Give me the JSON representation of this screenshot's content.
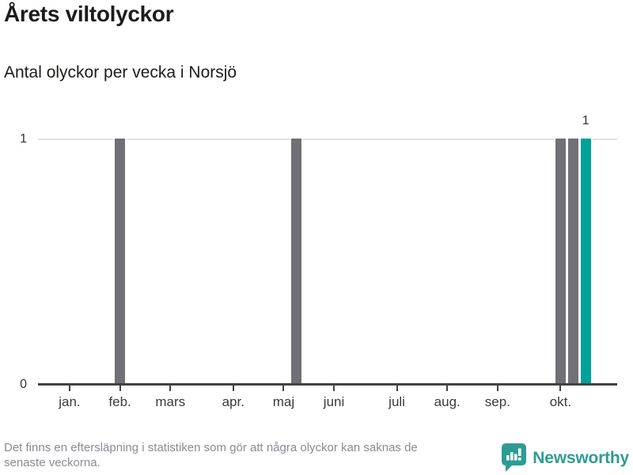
{
  "header": {
    "title": "Årets viltolyckor",
    "subtitle": "Antal olyckor per vecka i Norsjö"
  },
  "footer": {
    "note_line1": "Det finns en eftersläpning i statistiken som gör att några olyckor kan saknas de",
    "note_line2": "senaste veckorna.",
    "note_color": "#8b8b94",
    "brand": "Newsworthy",
    "brand_color": "#2E9C93"
  },
  "chart_data": {
    "type": "bar",
    "title": "Årets viltolyckor",
    "subtitle": "Antal olyckor per vecka i Norsjö",
    "x_unit": "week of year",
    "weeks_total": 44,
    "default_value": 0,
    "ylim": [
      0,
      1
    ],
    "yticks": [
      0,
      1
    ],
    "grid": "horizontal line at y=1 only",
    "legend": "none",
    "month_ticks": [
      {
        "label": "jan.",
        "week": 1
      },
      {
        "label": "feb.",
        "week": 5
      },
      {
        "label": "mars",
        "week": 9
      },
      {
        "label": "apr.",
        "week": 14
      },
      {
        "label": "maj",
        "week": 18
      },
      {
        "label": "juni",
        "week": 22
      },
      {
        "label": "juli",
        "week": 27
      },
      {
        "label": "aug.",
        "week": 31
      },
      {
        "label": "sep.",
        "week": 35
      },
      {
        "label": "okt.",
        "week": 40
      }
    ],
    "bars": [
      {
        "week": 5,
        "value": 1,
        "highlight": false
      },
      {
        "week": 19,
        "value": 1,
        "highlight": false
      },
      {
        "week": 40,
        "value": 1,
        "highlight": false
      },
      {
        "week": 41,
        "value": 1,
        "highlight": false
      },
      {
        "week": 42,
        "value": 1,
        "highlight": true,
        "label": "1"
      }
    ],
    "colors": {
      "bar": "#707076",
      "highlight": "#00A29B",
      "axis": "#424242",
      "tick": "#424242",
      "gridline": "#E3E3E3",
      "tick_label": "#3a3a3e",
      "value_label": "#333336"
    }
  }
}
